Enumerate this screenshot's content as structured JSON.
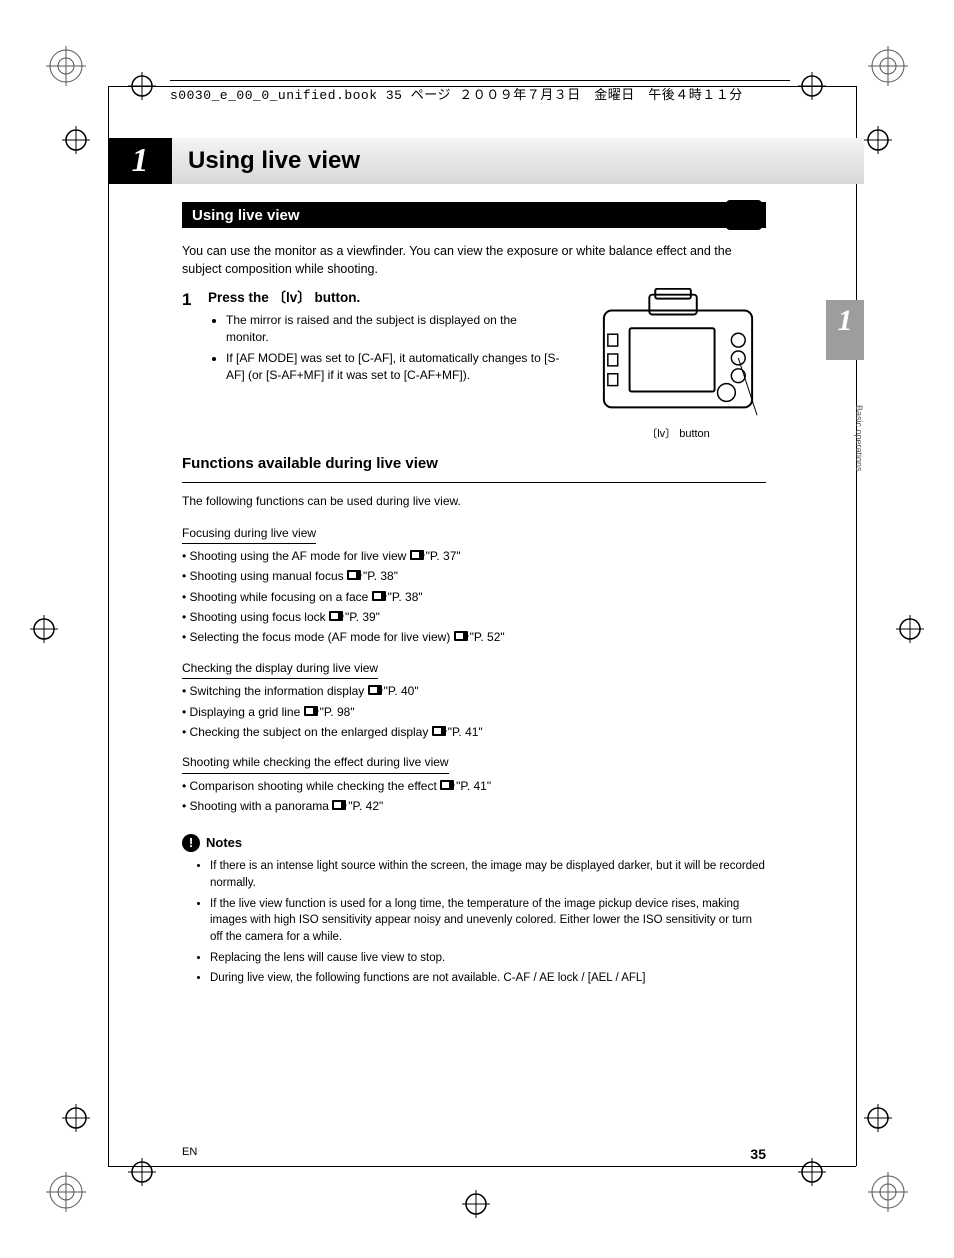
{
  "header": {
    "filepath": "s0030_e_00_0_unified.book  35 ページ  ２００９年７月３日　金曜日　午後４時１１分"
  },
  "chapter": {
    "number": "1",
    "title": "Using live view"
  },
  "section": {
    "title": "Using live view"
  },
  "intro": "You can use the monitor as a viewfinder. You can view the exposure or white balance effect and the subject composition while shooting.",
  "step1": {
    "num": "1",
    "main": "Press the 〔lv〕 button.",
    "bullets": [
      "The mirror is raised and the subject is displayed on the monitor.",
      "If [AF MODE] was set to [C-AF], it automatically changes to [S-AF] (or [S-AF+MF] if it was set to [C-AF+MF])."
    ]
  },
  "camera_caption": "〔lv〕 button",
  "side_tab": {
    "num": "1",
    "label": "Basic operations"
  },
  "funcs": {
    "heading": "Functions available during live view",
    "lead": "The following functions can be used during live view.",
    "groups": [
      {
        "title": "Focusing during live view",
        "items": [
          {
            "text": "Shooting using the AF mode for live view",
            "page": "P. 37"
          },
          {
            "text": "Shooting using manual focus",
            "page": "P. 38"
          },
          {
            "text": "Shooting while focusing on a face",
            "page": "P. 38"
          },
          {
            "text": "Shooting using focus lock",
            "page": "P. 39"
          },
          {
            "text": "Selecting the focus mode (AF mode for live view)",
            "page": "P. 52"
          }
        ]
      },
      {
        "title": "Checking the display during live view",
        "items": [
          {
            "text": "Switching the information display",
            "page": "P. 40"
          },
          {
            "text": "Displaying a grid line",
            "page": "P. 98"
          },
          {
            "text": "Checking the subject on the enlarged display",
            "page": "P. 41"
          }
        ]
      },
      {
        "title": "Shooting while checking the effect during live view",
        "items": [
          {
            "text": "Comparison shooting while checking the effect",
            "page": "P. 41"
          },
          {
            "text": "Shooting with a panorama",
            "page": "P. 42"
          }
        ]
      }
    ]
  },
  "notes": {
    "heading": "Notes",
    "items": [
      "If there is an intense light source within the screen, the image may be displayed darker, but it will be recorded normally.",
      "If the live view function is used for a long time, the temperature of the image pickup device rises, making images with high ISO sensitivity appear noisy and unevenly colored. Either lower the ISO sensitivity or turn off the camera for a while.",
      "Replacing the lens will cause live view to stop.",
      "During live view, the following functions are not available.\nC-AF / AE lock / [AEL / AFL]"
    ]
  },
  "footer": {
    "lang": "EN",
    "page": "35"
  },
  "colors": {
    "black": "#000000",
    "grey_tab": "#9d9d9d"
  }
}
